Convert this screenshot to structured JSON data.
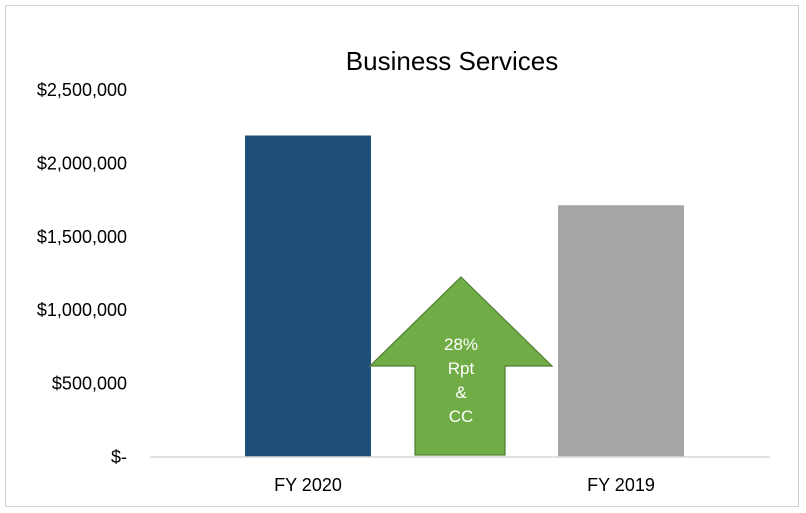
{
  "chart_data": {
    "type": "bar",
    "title": "Business Services",
    "xlabel": "",
    "ylabel": "",
    "categories": [
      "FY 2020",
      "FY 2019"
    ],
    "values": [
      2190000,
      1715000
    ],
    "bar_colors": [
      "#1f4e79",
      "#a6a6a6"
    ],
    "ylim": [
      0,
      2500000
    ],
    "y_ticks": [
      0,
      500000,
      1000000,
      1500000,
      2000000,
      2500000
    ],
    "y_tick_labels": [
      "$-",
      "$500,000",
      "$1,000,000",
      "$1,500,000",
      "$2,000,000",
      "$2,500,000"
    ],
    "grid": false,
    "legend": "none",
    "annotation": {
      "shape": "up-arrow",
      "color": "#70ad47",
      "border_color": "#507e32",
      "lines": [
        "28%",
        "Rpt",
        "&",
        "CC"
      ]
    }
  }
}
